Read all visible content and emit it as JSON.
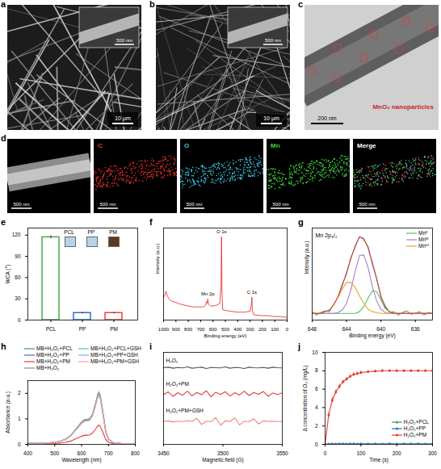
{
  "image_panels": [
    {
      "panel": "a",
      "scale_bar": "10 μm",
      "inset_scale_bar": "500 nm"
    },
    {
      "panel": "b",
      "scale_bar": "10 μm",
      "inset_scale_bar": "500 nm"
    },
    {
      "panel": "c",
      "scale_bar": "200 nm",
      "annotation": "MnO₂ nanoparticles"
    },
    {
      "panel": "d",
      "maps": [
        {
          "scale_bar": "500 nm"
        },
        {
          "label": "C",
          "color": "#e0302a",
          "scale_bar": "500 nm"
        },
        {
          "label": "O",
          "color": "#3cc3dc",
          "scale_bar": "500 nm"
        },
        {
          "label": "Mn",
          "color": "#3fd23f",
          "scale_bar": "500 nm"
        },
        {
          "label": "Merge",
          "color": "#ffffff",
          "scale_bar": "500 nm"
        }
      ]
    }
  ],
  "chart_data": [
    {
      "panel": "e",
      "type": "bar",
      "categories": [
        "PCL",
        "PP",
        "PM"
      ],
      "values": [
        117,
        10,
        10
      ],
      "errors": [
        2,
        1,
        1
      ],
      "colors": [
        "#43a047",
        "#1e63c8",
        "#e53935"
      ],
      "ylabel": "WCA (°)",
      "ylim": [
        0,
        130
      ],
      "yticks": [
        0,
        30,
        60,
        90,
        120
      ],
      "inset_labels": [
        "PCL",
        "PP",
        "PM"
      ]
    },
    {
      "panel": "f",
      "type": "line",
      "x": [
        1000,
        990,
        980,
        975,
        960,
        940,
        900,
        860,
        800,
        760,
        720,
        680,
        660,
        653,
        648,
        642,
        636,
        620,
        600,
        570,
        545,
        535,
        531,
        527,
        522,
        500,
        450,
        400,
        350,
        300,
        290,
        285,
        281,
        270,
        200,
        150,
        100,
        50,
        0
      ],
      "values": [
        0.26,
        0.28,
        0.33,
        0.3,
        0.25,
        0.22,
        0.2,
        0.18,
        0.16,
        0.15,
        0.15,
        0.15,
        0.17,
        0.21,
        0.19,
        0.24,
        0.18,
        0.16,
        0.16,
        0.17,
        0.19,
        0.4,
        0.95,
        0.3,
        0.12,
        0.11,
        0.1,
        0.09,
        0.09,
        0.1,
        0.18,
        0.26,
        0.1,
        0.06,
        0.05,
        0.05,
        0.04,
        0.04,
        0.03
      ],
      "color": "#e53935",
      "xlabel": "Binding energy (eV)",
      "ylabel": "Intensity (a.u.)",
      "xlim": [
        1000,
        0
      ],
      "xticks": [
        1000,
        900,
        800,
        700,
        600,
        500,
        400,
        300,
        200,
        100,
        0
      ],
      "ylim": [
        0,
        1.05
      ],
      "tick_labels": "x",
      "annotations": [
        {
          "text": "Mn 2p",
          "x": 642,
          "y": 0.24
        },
        {
          "text": "O 1s",
          "x": 531,
          "y": 0.95
        },
        {
          "text": "C 1s",
          "x": 285,
          "y": 0.26
        }
      ]
    },
    {
      "panel": "g",
      "type": "line",
      "title": "Mn 2p₃/₂",
      "x": [
        648,
        647.5,
        647,
        646.5,
        646,
        645.5,
        645,
        644.5,
        644,
        643.5,
        643,
        642.5,
        642,
        641.5,
        641,
        640.5,
        640,
        639.5,
        639,
        638.5,
        638,
        637.5,
        637,
        636.5,
        636,
        635.5,
        635,
        634.5,
        634
      ],
      "series": [
        {
          "color": "#555555",
          "values": [
            0.1,
            0.06,
            0.09,
            0.11,
            0.1,
            0.19,
            0.27,
            0.43,
            0.55,
            0.75,
            0.87,
            1.0,
            0.96,
            0.88,
            0.67,
            0.5,
            0.27,
            0.17,
            0.09,
            0.1,
            0.06,
            0.09,
            0.11,
            0.07,
            0.08,
            0.1,
            0.06,
            0.09,
            0.08
          ]
        },
        {
          "name": "Mnᴵᴵ",
          "color": "#5cbf5c",
          "values": [
            0.08,
            0.08,
            0.08,
            0.08,
            0.08,
            0.08,
            0.08,
            0.08,
            0.08,
            0.08,
            0.08,
            0.1,
            0.16,
            0.26,
            0.35,
            0.34,
            0.24,
            0.14,
            0.1,
            0.08,
            0.08,
            0.08,
            0.08,
            0.08,
            0.08,
            0.08,
            0.08,
            0.08,
            0.08
          ]
        },
        {
          "name": "Mnᴵᴵᴵ",
          "color": "#a77fd1",
          "values": [
            0.08,
            0.08,
            0.08,
            0.08,
            0.08,
            0.08,
            0.09,
            0.12,
            0.2,
            0.36,
            0.58,
            0.77,
            0.78,
            0.63,
            0.4,
            0.23,
            0.13,
            0.09,
            0.08,
            0.08,
            0.08,
            0.08,
            0.08,
            0.08,
            0.08,
            0.08,
            0.08,
            0.08,
            0.08
          ]
        },
        {
          "name": "Mnᴵⱽ",
          "color": "#f0a030",
          "values": [
            0.08,
            0.08,
            0.08,
            0.1,
            0.12,
            0.18,
            0.27,
            0.37,
            0.45,
            0.45,
            0.39,
            0.29,
            0.2,
            0.13,
            0.1,
            0.09,
            0.08,
            0.08,
            0.08,
            0.08,
            0.08,
            0.08,
            0.08,
            0.08,
            0.08,
            0.08,
            0.08,
            0.08,
            0.08
          ]
        },
        {
          "color": "#c0392b",
          "values": [
            0.08,
            0.08,
            0.08,
            0.1,
            0.12,
            0.18,
            0.28,
            0.41,
            0.57,
            0.73,
            0.89,
            0.99,
            0.98,
            0.86,
            0.69,
            0.49,
            0.29,
            0.15,
            0.1,
            0.08,
            0.08,
            0.08,
            0.08,
            0.08,
            0.08,
            0.08,
            0.08,
            0.08,
            0.08
          ]
        }
      ],
      "xlabel": "Binding energy (eV)",
      "ylabel": "Intensity (a.u.)",
      "xlim": [
        648,
        634
      ],
      "xticks": [
        648,
        644,
        640,
        636
      ],
      "ylim": [
        0,
        1.1
      ],
      "tick_labels": "x",
      "legend": "top-right"
    },
    {
      "panel": "h",
      "type": "line",
      "x": [
        400,
        450,
        500,
        520,
        540,
        560,
        580,
        600,
        612,
        620,
        630,
        640,
        650,
        660,
        664,
        670,
        680,
        690,
        700,
        720,
        750,
        800
      ],
      "series": [
        {
          "name": "MB+H₂O₂+PCL",
          "color": "#4f9a5c",
          "values": [
            0.05,
            0.04,
            0.08,
            0.12,
            0.2,
            0.35,
            0.6,
            0.85,
            0.95,
            0.95,
            0.98,
            1.15,
            1.5,
            1.9,
            2.0,
            1.85,
            1.2,
            0.5,
            0.2,
            0.06,
            0.03,
            0.02
          ]
        },
        {
          "name": "MB+H₂O₂+PP",
          "color": "#2f6fd6",
          "values": [
            0.05,
            0.04,
            0.08,
            0.12,
            0.2,
            0.34,
            0.59,
            0.83,
            0.93,
            0.93,
            0.96,
            1.13,
            1.47,
            1.86,
            1.96,
            1.81,
            1.18,
            0.49,
            0.2,
            0.06,
            0.03,
            0.02
          ]
        },
        {
          "name": "MB+H₂O₂+PM",
          "color": "#e53935",
          "values": [
            0.03,
            0.02,
            0.03,
            0.05,
            0.08,
            0.13,
            0.23,
            0.32,
            0.36,
            0.36,
            0.37,
            0.44,
            0.57,
            0.72,
            0.76,
            0.7,
            0.46,
            0.19,
            0.08,
            0.03,
            0.02,
            0.01
          ]
        },
        {
          "name": "MB+H₂O₂",
          "color": "#8a8a8a",
          "values": [
            0.05,
            0.04,
            0.08,
            0.12,
            0.21,
            0.36,
            0.62,
            0.88,
            0.98,
            0.98,
            1.01,
            1.18,
            1.55,
            1.96,
            2.06,
            1.91,
            1.24,
            0.52,
            0.21,
            0.06,
            0.03,
            0.02
          ]
        },
        {
          "name": "MB+H₂O₂+PCL+GSH",
          "color": "#6cc0a0",
          "values": [
            0.05,
            0.04,
            0.08,
            0.12,
            0.2,
            0.35,
            0.59,
            0.84,
            0.94,
            0.94,
            0.97,
            1.14,
            1.49,
            1.88,
            1.98,
            1.83,
            1.19,
            0.5,
            0.2,
            0.06,
            0.03,
            0.02
          ]
        },
        {
          "name": "MB+H₂O₂+PP+GSH",
          "color": "#7fb3e8",
          "values": [
            0.05,
            0.04,
            0.08,
            0.12,
            0.19,
            0.34,
            0.58,
            0.82,
            0.92,
            0.92,
            0.95,
            1.12,
            1.46,
            1.84,
            1.94,
            1.79,
            1.16,
            0.49,
            0.19,
            0.06,
            0.03,
            0.02
          ]
        },
        {
          "name": "MB+H₂O₂+PM+GSH",
          "color": "#f4a0a0",
          "values": [
            0.05,
            0.04,
            0.08,
            0.11,
            0.19,
            0.34,
            0.58,
            0.82,
            0.91,
            0.91,
            0.94,
            1.1,
            1.44,
            1.82,
            1.92,
            1.78,
            1.15,
            0.48,
            0.19,
            0.06,
            0.03,
            0.02
          ]
        }
      ],
      "xlabel": "Wavelength (nm)",
      "ylabel": "Absorbance (a.u.)",
      "xlim": [
        400,
        800
      ],
      "xticks": [
        400,
        500,
        600,
        700,
        800
      ],
      "ylim": [
        0,
        2.5
      ],
      "yticks": [
        0,
        1,
        2
      ],
      "legend": "top"
    },
    {
      "panel": "i",
      "type": "line",
      "x": [
        3450,
        3454,
        3458,
        3462,
        3466,
        3470,
        3474,
        3478,
        3482,
        3486,
        3490,
        3494,
        3498,
        3502,
        3506,
        3510,
        3514,
        3518,
        3522,
        3526,
        3530,
        3534,
        3538,
        3542,
        3546,
        3550
      ],
      "series": [
        {
          "name": "H₂O₂",
          "color": "#555555",
          "values": [
            3.0,
            3.02,
            2.98,
            3.01,
            2.99,
            3.03,
            2.98,
            3.0,
            3.02,
            2.97,
            3.01,
            3.0,
            2.99,
            3.03,
            2.98,
            3.01,
            3.0,
            2.97,
            3.02,
            3.0,
            2.99,
            3.01,
            2.98,
            3.02,
            3.0,
            2.99
          ]
        },
        {
          "name": "H₂O₂+PM",
          "color": "#e53935",
          "values": [
            1.95,
            2.05,
            1.88,
            2.02,
            1.92,
            2.08,
            1.9,
            2.03,
            1.94,
            2.1,
            1.86,
            2.04,
            1.95,
            2.06,
            1.89,
            2.02,
            1.93,
            2.08,
            1.91,
            2.03,
            1.96,
            2.07,
            1.88,
            2.01,
            1.95,
            2.02
          ]
        },
        {
          "name": "H₂O₂+PM+GSH",
          "color": "#f08080",
          "values": [
            0.9,
            0.92,
            0.88,
            0.91,
            0.89,
            0.93,
            0.9,
            1.02,
            0.78,
            0.91,
            0.89,
            1.05,
            0.75,
            0.92,
            0.9,
            1.04,
            0.76,
            0.91,
            0.89,
            1.0,
            0.8,
            0.92,
            0.9,
            0.91,
            0.89,
            0.9
          ]
        }
      ],
      "xlabel": "Magnetic field (G)",
      "xlim": [
        3450,
        3550
      ],
      "xticks": [
        3450,
        3500,
        3550
      ],
      "ylim": [
        0,
        3.6
      ],
      "tick_labels": "x"
    },
    {
      "panel": "j",
      "type": "line",
      "marker": "circle",
      "x": [
        0,
        10,
        20,
        30,
        40,
        50,
        60,
        70,
        80,
        90,
        100,
        120,
        140,
        160,
        180,
        200,
        220,
        240,
        260,
        280,
        300
      ],
      "series": [
        {
          "name": "H₂O₂+PCL",
          "color": "#43a047",
          "values": [
            0,
            0.05,
            0.04,
            0.05,
            0.06,
            0.05,
            0.05,
            0.06,
            0.05,
            0.05,
            0.06,
            0.05,
            0.06,
            0.05,
            0.06,
            0.05,
            0.06,
            0.05,
            0.06,
            0.05,
            0.06
          ]
        },
        {
          "name": "H₂O₂+PP",
          "color": "#2f6fd6",
          "values": [
            0,
            0.03,
            0.03,
            0.02,
            0.03,
            0.04,
            0.03,
            0.03,
            0.04,
            0.03,
            0.03,
            0.04,
            0.03,
            0.03,
            0.04,
            0.03,
            0.03,
            0.04,
            0.03,
            0.03,
            0.04
          ]
        },
        {
          "name": "H₂O₂+PM",
          "color": "#e53935",
          "values": [
            0,
            3.2,
            4.8,
            5.7,
            6.3,
            6.8,
            7.1,
            7.4,
            7.6,
            7.7,
            7.8,
            7.9,
            7.95,
            8.0,
            8.0,
            8.0,
            8.0,
            8.0,
            8.0,
            8.0,
            8.0
          ],
          "errors": [
            0,
            0.3,
            0.3,
            0.25,
            0.25,
            0.2,
            0.2,
            0.2,
            0.2,
            0.2,
            0.2,
            0.15,
            0.15,
            0.15,
            0.15,
            0.15,
            0.15,
            0.15,
            0.15,
            0.15,
            0.15
          ]
        }
      ],
      "xlabel": "Time (s)",
      "ylabel": "Δ concentration of O₂ (mg/L)",
      "xlim": [
        0,
        300
      ],
      "xticks": [
        0,
        100,
        200,
        300
      ],
      "ylim": [
        0,
        10
      ],
      "yticks": [
        0,
        2,
        4,
        6,
        8,
        10
      ],
      "legend": "bottom-right"
    }
  ]
}
